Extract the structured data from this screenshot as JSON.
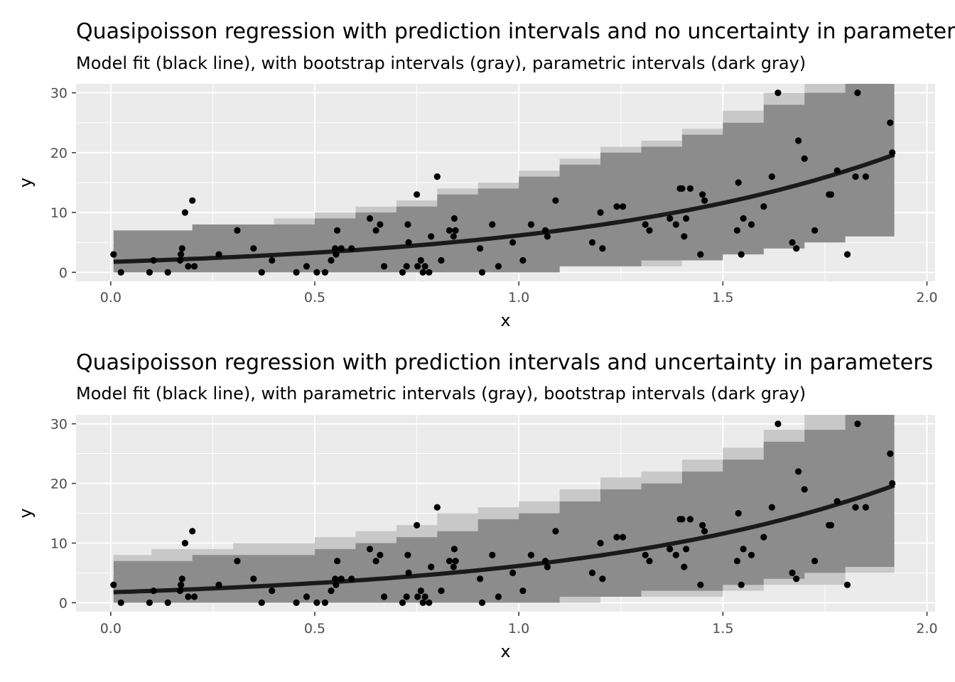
{
  "chart_data": [
    {
      "type": "scatter",
      "title": "Quasipoisson regression with prediction intervals and no uncertainty in parameters",
      "subtitle": "Model fit (black line), with bootstrap intervals (gray), parametric intervals (dark gray)",
      "xlabel": "x",
      "ylabel": "y",
      "xlim": [
        -0.085,
        2.02
      ],
      "ylim": [
        -1.5,
        31.5
      ],
      "xticks": [
        "0.0",
        "0.5",
        "1.0",
        "1.5",
        "2.0"
      ],
      "yticks": [
        "0",
        "10",
        "20",
        "30"
      ],
      "grid": true,
      "colors": {
        "panel": "#ebebeb",
        "outer_band": "#c8c8c8",
        "inner_band": "#8c8c8c",
        "fit": "#1a1a1a",
        "points": "#000000"
      },
      "fit": {
        "intercept_y": 1.75,
        "rate": 1.26,
        "x_range": [
          0.007,
          1.92
        ]
      },
      "outer_band": {
        "x": [
          0.007,
          0.1,
          0.2,
          0.3,
          0.4,
          0.5,
          0.6,
          0.7,
          0.8,
          0.9,
          1.0,
          1.1,
          1.2,
          1.3,
          1.4,
          1.5,
          1.6,
          1.7,
          1.8,
          1.92
        ],
        "lower": [
          0,
          0,
          0,
          0,
          0,
          0,
          0,
          0,
          0,
          0,
          0,
          1,
          1,
          1,
          2,
          3,
          4,
          5,
          6,
          8
        ],
        "upper": [
          7,
          7,
          8,
          8,
          9,
          10,
          11,
          12,
          14,
          15,
          17,
          19,
          21,
          22,
          24,
          27,
          30,
          33,
          35,
          38
        ]
      },
      "inner_band": {
        "x": [
          0.007,
          0.1,
          0.2,
          0.3,
          0.4,
          0.5,
          0.6,
          0.7,
          0.8,
          0.9,
          1.0,
          1.1,
          1.2,
          1.3,
          1.4,
          1.5,
          1.6,
          1.7,
          1.8,
          1.92
        ],
        "lower": [
          0,
          0,
          0,
          0,
          0,
          0,
          0,
          0,
          0,
          0,
          0,
          1,
          1,
          2,
          2,
          3,
          4,
          5,
          6,
          8
        ],
        "upper": [
          7,
          7,
          8,
          8,
          8,
          9,
          10,
          11,
          13,
          14,
          16,
          18,
          20,
          21,
          23,
          25,
          28,
          30,
          33,
          36
        ]
      },
      "points": {
        "x": [
          0.007,
          0.025,
          0.095,
          0.105,
          0.14,
          0.17,
          0.172,
          0.175,
          0.182,
          0.19,
          0.2,
          0.205,
          0.265,
          0.31,
          0.35,
          0.37,
          0.395,
          0.455,
          0.48,
          0.505,
          0.525,
          0.54,
          0.55,
          0.552,
          0.555,
          0.565,
          0.59,
          0.635,
          0.65,
          0.66,
          0.67,
          0.715,
          0.725,
          0.728,
          0.73,
          0.75,
          0.752,
          0.76,
          0.765,
          0.77,
          0.78,
          0.785,
          0.8,
          0.81,
          0.83,
          0.84,
          0.842,
          0.845,
          0.905,
          0.91,
          0.935,
          0.95,
          0.985,
          1.01,
          1.03,
          1.065,
          1.07,
          1.09,
          1.18,
          1.2,
          1.205,
          1.24,
          1.255,
          1.31,
          1.32,
          1.37,
          1.385,
          1.395,
          1.4,
          1.405,
          1.41,
          1.42,
          1.445,
          1.45,
          1.455,
          1.535,
          1.538,
          1.545,
          1.55,
          1.57,
          1.6,
          1.62,
          1.635,
          1.67,
          1.68,
          1.685,
          1.7,
          1.725,
          1.76,
          1.765,
          1.78,
          1.805,
          1.825,
          1.83,
          1.85,
          1.91,
          1.915
        ],
        "y": [
          3,
          0,
          0,
          2,
          0,
          2,
          3,
          4,
          10,
          1,
          12,
          1,
          3,
          7,
          4,
          0,
          2,
          0,
          1,
          0,
          0,
          2,
          4,
          3,
          7,
          4,
          4,
          9,
          7,
          8,
          1,
          0,
          1,
          8,
          5,
          13,
          1,
          2,
          0,
          1,
          0,
          6,
          16,
          2,
          7,
          6,
          9,
          7,
          4,
          0,
          8,
          1,
          5,
          2,
          8,
          7,
          6,
          12,
          5,
          10,
          4,
          11,
          11,
          8,
          7,
          9,
          8,
          14,
          14,
          6,
          9,
          14,
          3,
          13,
          12,
          7,
          15,
          3,
          9,
          8,
          11,
          16,
          30,
          5,
          4,
          22,
          19,
          7,
          13,
          13,
          17,
          3,
          16,
          30,
          16,
          25,
          20
        ]
      }
    },
    {
      "type": "scatter",
      "title": "Quasipoisson regression with prediction intervals and uncertainty in parameters",
      "subtitle": "Model fit (black line), with parametric intervals (gray), bootstrap intervals (dark gray)",
      "xlabel": "x",
      "ylabel": "y",
      "xlim": [
        -0.085,
        2.02
      ],
      "ylim": [
        -1.5,
        31.5
      ],
      "xticks": [
        "0.0",
        "0.5",
        "1.0",
        "1.5",
        "2.0"
      ],
      "yticks": [
        "0",
        "10",
        "20",
        "30"
      ],
      "grid": true,
      "colors": {
        "panel": "#ebebeb",
        "outer_band": "#c8c8c8",
        "inner_band": "#8c8c8c",
        "fit": "#1a1a1a",
        "points": "#000000"
      },
      "fit": {
        "intercept_y": 1.75,
        "rate": 1.26,
        "x_range": [
          0.007,
          1.92
        ]
      },
      "outer_band": {
        "x": [
          0.007,
          0.1,
          0.2,
          0.3,
          0.4,
          0.5,
          0.6,
          0.7,
          0.8,
          0.9,
          1.0,
          1.1,
          1.2,
          1.3,
          1.4,
          1.5,
          1.6,
          1.7,
          1.8,
          1.92
        ],
        "lower": [
          0,
          0,
          0,
          0,
          0,
          0,
          0,
          0,
          0,
          0,
          0,
          0,
          1,
          1,
          1,
          2,
          3,
          3,
          5,
          6
        ],
        "upper": [
          8,
          9,
          9,
          10,
          10,
          11,
          12,
          13,
          15,
          16,
          17,
          19,
          21,
          22,
          24,
          26,
          29,
          32,
          35,
          38
        ]
      },
      "inner_band": {
        "x": [
          0.007,
          0.1,
          0.2,
          0.3,
          0.4,
          0.5,
          0.6,
          0.7,
          0.8,
          0.9,
          1.0,
          1.1,
          1.2,
          1.3,
          1.4,
          1.5,
          1.6,
          1.7,
          1.8,
          1.92
        ],
        "lower": [
          0,
          0,
          0,
          0,
          0,
          0,
          0,
          0,
          0,
          0,
          0,
          1,
          1,
          2,
          2,
          3,
          4,
          5,
          6,
          8
        ],
        "upper": [
          7,
          7,
          8,
          8,
          8,
          9,
          10,
          11,
          12,
          14,
          15,
          17,
          19,
          20,
          22,
          24,
          27,
          29,
          32,
          35
        ]
      },
      "points": {
        "x": [
          0.007,
          0.025,
          0.095,
          0.105,
          0.14,
          0.17,
          0.172,
          0.175,
          0.182,
          0.19,
          0.2,
          0.205,
          0.265,
          0.31,
          0.35,
          0.37,
          0.395,
          0.455,
          0.48,
          0.505,
          0.525,
          0.54,
          0.55,
          0.552,
          0.555,
          0.565,
          0.59,
          0.635,
          0.65,
          0.66,
          0.67,
          0.715,
          0.725,
          0.728,
          0.73,
          0.75,
          0.752,
          0.76,
          0.765,
          0.77,
          0.78,
          0.785,
          0.8,
          0.81,
          0.83,
          0.84,
          0.842,
          0.845,
          0.905,
          0.91,
          0.935,
          0.95,
          0.985,
          1.01,
          1.03,
          1.065,
          1.07,
          1.09,
          1.18,
          1.2,
          1.205,
          1.24,
          1.255,
          1.31,
          1.32,
          1.37,
          1.385,
          1.395,
          1.4,
          1.405,
          1.41,
          1.42,
          1.445,
          1.45,
          1.455,
          1.535,
          1.538,
          1.545,
          1.55,
          1.57,
          1.6,
          1.62,
          1.635,
          1.67,
          1.68,
          1.685,
          1.7,
          1.725,
          1.76,
          1.765,
          1.78,
          1.805,
          1.825,
          1.83,
          1.85,
          1.91,
          1.915
        ],
        "y": [
          3,
          0,
          0,
          2,
          0,
          2,
          3,
          4,
          10,
          1,
          12,
          1,
          3,
          7,
          4,
          0,
          2,
          0,
          1,
          0,
          0,
          2,
          4,
          3,
          7,
          4,
          4,
          9,
          7,
          8,
          1,
          0,
          1,
          8,
          5,
          13,
          1,
          2,
          0,
          1,
          0,
          6,
          16,
          2,
          7,
          6,
          9,
          7,
          4,
          0,
          8,
          1,
          5,
          2,
          8,
          7,
          6,
          12,
          5,
          10,
          4,
          11,
          11,
          8,
          7,
          9,
          8,
          14,
          14,
          6,
          9,
          14,
          3,
          13,
          12,
          7,
          15,
          3,
          9,
          8,
          11,
          16,
          30,
          5,
          4,
          22,
          19,
          7,
          13,
          13,
          17,
          3,
          16,
          30,
          16,
          25,
          20
        ]
      }
    }
  ]
}
